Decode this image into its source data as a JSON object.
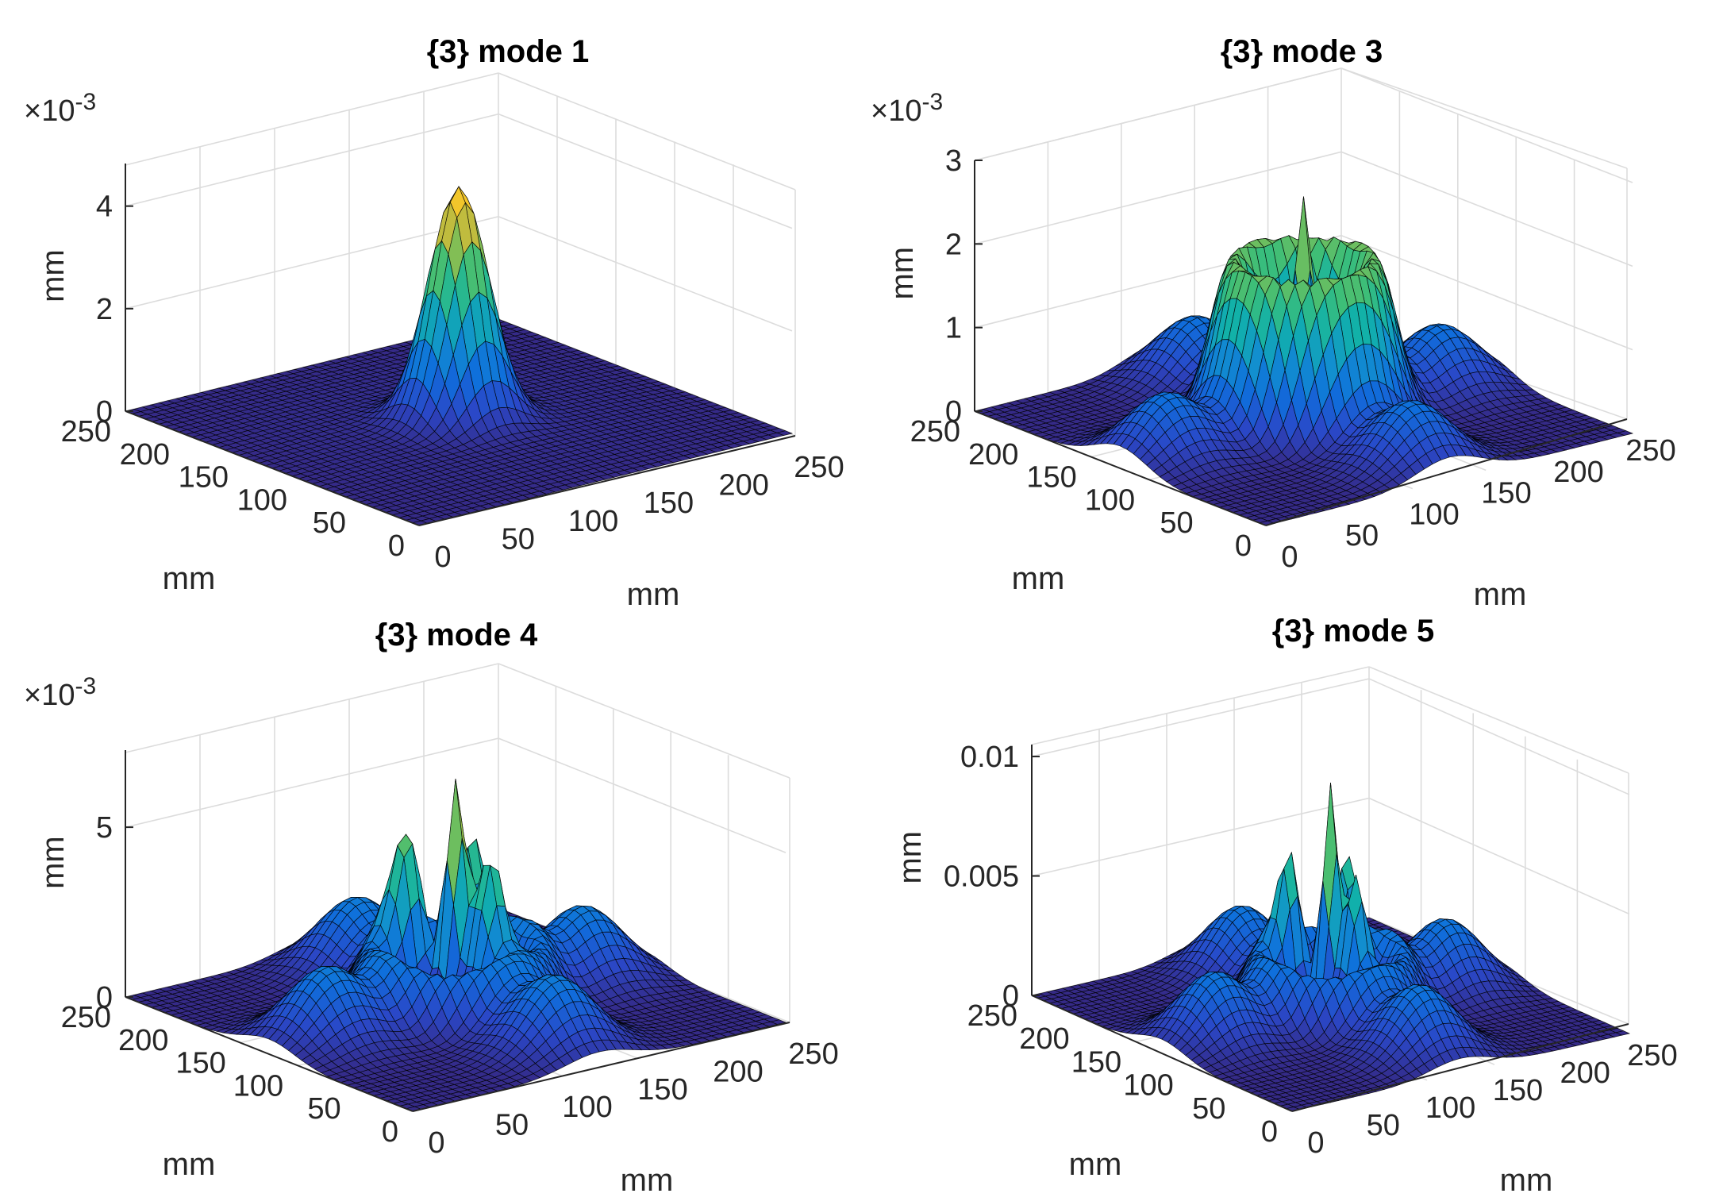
{
  "figure": {
    "colormap": "parula",
    "colors": {
      "grid": "#dcdcdc",
      "axis": "#262626",
      "mesh_edge": "#000000"
    }
  },
  "chart_data": [
    {
      "type": "surface",
      "title": "{3} mode 1",
      "xlabel": "mm",
      "ylabel": "mm",
      "zlabel": "mm",
      "xlim": [
        0,
        250
      ],
      "ylim": [
        0,
        250
      ],
      "zlim": [
        0,
        0.0048
      ],
      "x_ticks": [
        "0",
        "50",
        "100",
        "150",
        "200",
        "250"
      ],
      "y_ticks": [
        "0",
        "50",
        "100",
        "150",
        "200",
        "250"
      ],
      "z_ticks": [
        "0",
        "2",
        "4"
      ],
      "z_tick_values": [
        0,
        0.002,
        0.004
      ],
      "z_exponent": "×10-3",
      "grid": true,
      "peak_value": 0.0046,
      "shape": "single central peak"
    },
    {
      "type": "surface",
      "title": "{3} mode 3",
      "xlabel": "mm",
      "ylabel": "mm",
      "zlabel": "mm",
      "xlim": [
        0,
        250
      ],
      "ylim": [
        0,
        250
      ],
      "zlim": [
        0,
        0.003
      ],
      "x_ticks": [
        "0",
        "50",
        "100",
        "150",
        "200",
        "250"
      ],
      "y_ticks": [
        "0",
        "50",
        "100",
        "150",
        "200",
        "250"
      ],
      "z_ticks": [
        "0",
        "1",
        "2",
        "3"
      ],
      "z_tick_values": [
        0,
        0.001,
        0.002,
        0.003
      ],
      "z_exponent": "×10-3",
      "grid": true,
      "peak_value": 0.0027,
      "shape": "central ring with spike and corner lobes"
    },
    {
      "type": "surface",
      "title": "{3} mode 4",
      "xlabel": "mm",
      "ylabel": "mm",
      "zlabel": "mm",
      "xlim": [
        0,
        250
      ],
      "ylim": [
        0,
        250
      ],
      "zlim": [
        0,
        0.0072
      ],
      "x_ticks": [
        "0",
        "50",
        "100",
        "150",
        "200",
        "250"
      ],
      "y_ticks": [
        "0",
        "50",
        "100",
        "150",
        "200",
        "250"
      ],
      "z_ticks": [
        "0",
        "5"
      ],
      "z_tick_values": [
        0,
        0.005
      ],
      "z_exponent": "×10-3",
      "grid": true,
      "peak_value": 0.0068,
      "shape": "multiple central spikes with corner lobes"
    },
    {
      "type": "surface",
      "title": "{3} mode 5",
      "xlabel": "mm",
      "ylabel": "mm",
      "zlabel": "mm",
      "xlim": [
        0,
        250
      ],
      "ylim": [
        0,
        250
      ],
      "zlim": [
        0,
        0.0105
      ],
      "x_ticks": [
        "0",
        "50",
        "100",
        "150",
        "200",
        "250"
      ],
      "y_ticks": [
        "0",
        "50",
        "100",
        "150",
        "200",
        "250"
      ],
      "z_ticks": [
        "0",
        "0.005",
        "0.01"
      ],
      "z_tick_values": [
        0,
        0.005,
        0.01
      ],
      "z_exponent": "",
      "grid": true,
      "peak_value": 0.0097,
      "shape": "multiple central spikes with corner lobes"
    }
  ]
}
